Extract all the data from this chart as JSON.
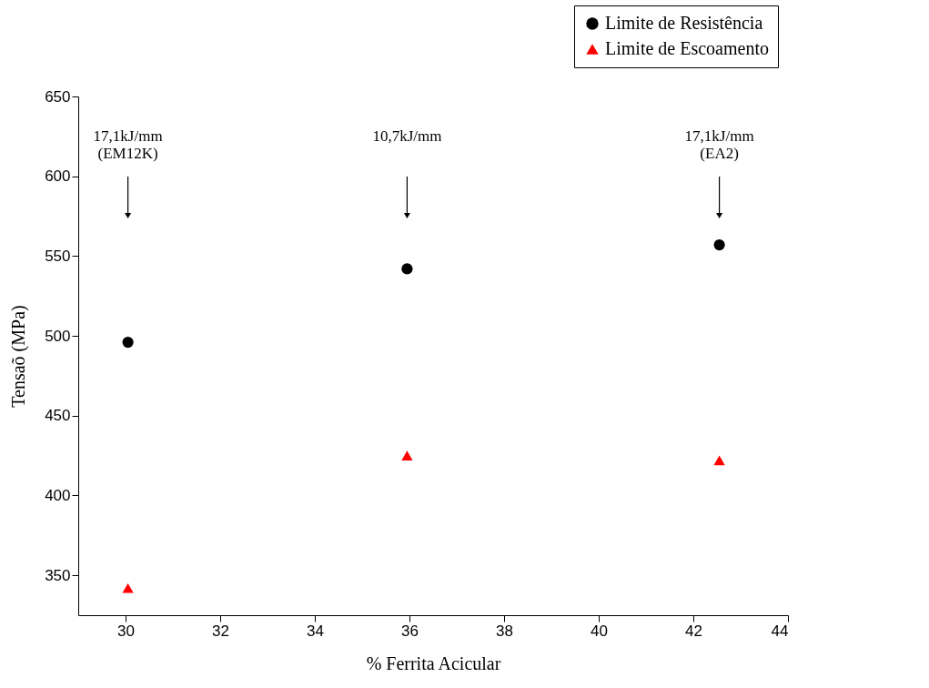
{
  "chart_data": {
    "type": "scatter",
    "xlabel": "% Ferrita Acicular",
    "ylabel": "Tensaõ (MPa)",
    "x": [
      30.05,
      35.95,
      42.55
    ],
    "series": [
      {
        "name": "Limite de Resistência",
        "color": "#000000",
        "marker": "circle",
        "values": [
          496,
          542,
          557
        ]
      },
      {
        "name": "Limite de Escoamento",
        "color": "#ff0000",
        "marker": "triangle",
        "values": [
          342,
          425,
          422
        ]
      }
    ],
    "xlim": [
      29,
      44
    ],
    "xticks": [
      30,
      32,
      34,
      36,
      38,
      40,
      42,
      44
    ],
    "ylim": [
      325,
      650
    ],
    "yticks": [
      350,
      400,
      450,
      500,
      550,
      600,
      650
    ],
    "grid": false,
    "legend": "top right",
    "annotations": [
      "17,1kJ/mm\n(EM12K)",
      "10,7kJ/mm",
      "17,1kJ/mm\n(EA2)"
    ]
  }
}
